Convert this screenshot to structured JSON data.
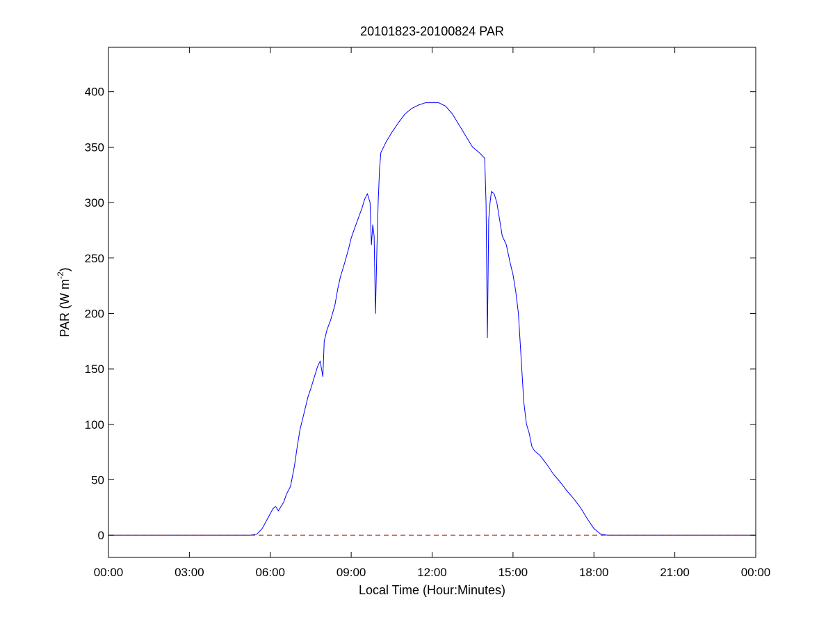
{
  "chart_data": {
    "type": "line",
    "title": "20101823-20100824 PAR",
    "xlabel": "Local Time (Hour:Minutes)",
    "ylabel": {
      "main": "PAR (W m",
      "superscript": "-2",
      "suffix": ")"
    },
    "x_unit": "hours",
    "xlim": [
      0,
      24
    ],
    "ylim": [
      -20,
      440
    ],
    "x_ticks": [
      {
        "value": 0,
        "label": "00:00"
      },
      {
        "value": 3,
        "label": "03:00"
      },
      {
        "value": 6,
        "label": "06:00"
      },
      {
        "value": 9,
        "label": "09:00"
      },
      {
        "value": 12,
        "label": "12:00"
      },
      {
        "value": 15,
        "label": "15:00"
      },
      {
        "value": 18,
        "label": "18:00"
      },
      {
        "value": 21,
        "label": "21:00"
      },
      {
        "value": 24,
        "label": "00:00"
      }
    ],
    "y_ticks": [
      {
        "value": 0,
        "label": "0"
      },
      {
        "value": 50,
        "label": "50"
      },
      {
        "value": 100,
        "label": "100"
      },
      {
        "value": 150,
        "label": "150"
      },
      {
        "value": 200,
        "label": "200"
      },
      {
        "value": 250,
        "label": "250"
      },
      {
        "value": 300,
        "label": "300"
      },
      {
        "value": 350,
        "label": "350"
      },
      {
        "value": 400,
        "label": "400"
      }
    ],
    "grid": false,
    "legend": "none",
    "series": [
      {
        "color": "#0000ff",
        "style": "solid",
        "x": [
          0,
          5.0,
          5.25,
          5.5,
          5.7,
          5.9,
          6.1,
          6.2,
          6.3,
          6.4,
          6.5,
          6.6,
          6.75,
          6.9,
          7.0,
          7.1,
          7.25,
          7.4,
          7.5,
          7.6,
          7.75,
          7.85,
          7.9,
          7.95,
          8.0,
          8.1,
          8.25,
          8.4,
          8.5,
          8.6,
          8.75,
          8.9,
          9.0,
          9.1,
          9.25,
          9.4,
          9.5,
          9.6,
          9.7,
          9.75,
          9.8,
          9.85,
          9.9,
          9.95,
          10.0,
          10.05,
          10.1,
          10.2,
          10.3,
          10.5,
          10.75,
          11.0,
          11.25,
          11.5,
          11.75,
          12.0,
          12.25,
          12.5,
          12.75,
          13.0,
          13.25,
          13.5,
          13.75,
          13.95,
          14.0,
          14.05,
          14.1,
          14.15,
          14.2,
          14.3,
          14.4,
          14.5,
          14.6,
          14.75,
          14.9,
          15.0,
          15.1,
          15.2,
          15.3,
          15.4,
          15.5,
          15.6,
          15.7,
          15.75,
          15.8,
          15.85,
          15.9,
          16.0,
          16.25,
          16.5,
          16.75,
          17.0,
          17.25,
          17.5,
          17.75,
          18.0,
          18.25,
          18.5,
          18.75,
          19.0,
          21.0,
          24.0
        ],
        "y": [
          0,
          0,
          0,
          1,
          6,
          15,
          24,
          26,
          22,
          26,
          30,
          37,
          44,
          63,
          80,
          95,
          110,
          125,
          132,
          140,
          152,
          157,
          150,
          143,
          175,
          185,
          195,
          208,
          222,
          233,
          245,
          258,
          268,
          275,
          285,
          295,
          303,
          308,
          300,
          262,
          280,
          270,
          200,
          255,
          300,
          330,
          345,
          350,
          355,
          363,
          372,
          380,
          385,
          388,
          390,
          390,
          390,
          387,
          380,
          370,
          360,
          350,
          345,
          340,
          300,
          178,
          285,
          300,
          310,
          308,
          300,
          285,
          270,
          262,
          245,
          235,
          220,
          200,
          160,
          120,
          100,
          92,
          80,
          78,
          76,
          75,
          74,
          72,
          64,
          55,
          48,
          40,
          33,
          25,
          15,
          6,
          1,
          0,
          0,
          0,
          0,
          0
        ]
      },
      {
        "color": "#cc0000",
        "style": "dashed",
        "x": [
          0,
          24
        ],
        "y": [
          0,
          0
        ]
      }
    ]
  }
}
